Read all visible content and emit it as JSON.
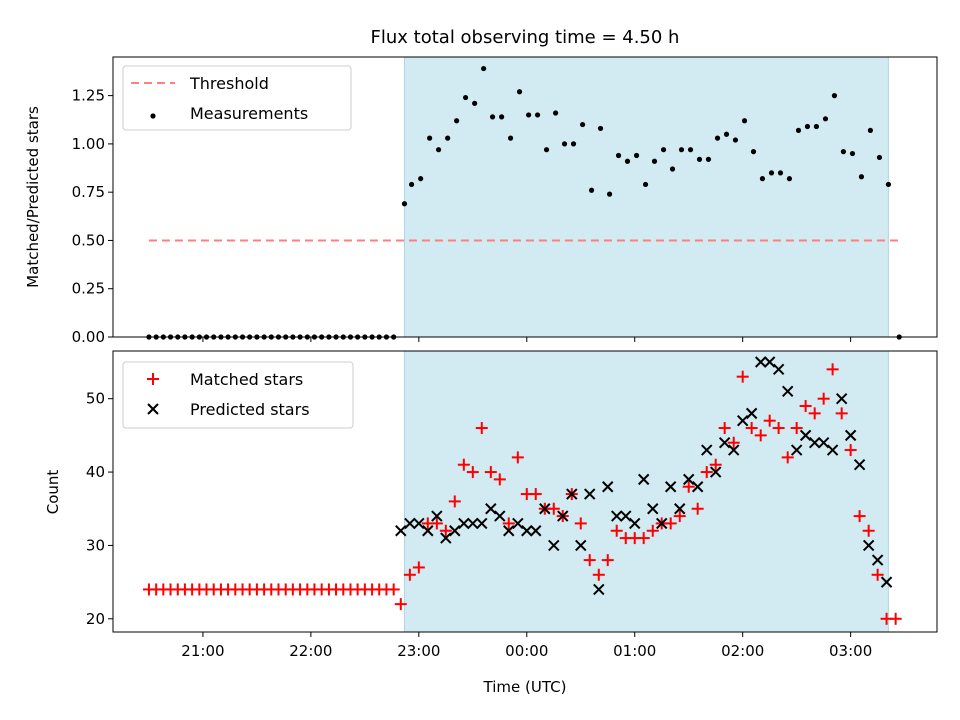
{
  "chart_data": [
    {
      "type": "scatter",
      "title": "Flux total observing time = 4.50 h",
      "xlabel": "",
      "ylabel": "Matched/Predicted stars",
      "ylim": [
        0,
        1.45
      ],
      "yticks": [
        "0.00",
        "0.25",
        "0.50",
        "0.75",
        "1.00",
        "1.25"
      ],
      "xlim_hours": [
        20.167,
        27.8
      ],
      "shaded_region_hours": [
        22.867,
        27.35
      ],
      "shade_color": "#add8e6",
      "threshold": {
        "name": "Threshold",
        "y": 0.5,
        "x_hours": [
          20.5,
          27.45
        ],
        "color": "#ff7f7f"
      },
      "legend": {
        "position": "upper left",
        "entries": [
          "Threshold",
          "Measurements"
        ]
      },
      "series": [
        {
          "name": "Measurements",
          "color": "#000000",
          "marker": "dot",
          "points": [
            [
              20.5,
              0
            ],
            [
              20.567,
              0
            ],
            [
              20.633,
              0
            ],
            [
              20.7,
              0
            ],
            [
              20.767,
              0
            ],
            [
              20.833,
              0
            ],
            [
              20.9,
              0
            ],
            [
              20.967,
              0
            ],
            [
              21.033,
              0
            ],
            [
              21.1,
              0
            ],
            [
              21.167,
              0
            ],
            [
              21.233,
              0
            ],
            [
              21.3,
              0
            ],
            [
              21.367,
              0
            ],
            [
              21.433,
              0
            ],
            [
              21.5,
              0
            ],
            [
              21.567,
              0
            ],
            [
              21.633,
              0
            ],
            [
              21.7,
              0
            ],
            [
              21.767,
              0
            ],
            [
              21.833,
              0
            ],
            [
              21.9,
              0
            ],
            [
              21.967,
              0
            ],
            [
              22.033,
              0
            ],
            [
              22.1,
              0
            ],
            [
              22.167,
              0
            ],
            [
              22.233,
              0
            ],
            [
              22.3,
              0
            ],
            [
              22.367,
              0
            ],
            [
              22.433,
              0
            ],
            [
              22.5,
              0
            ],
            [
              22.567,
              0
            ],
            [
              22.633,
              0
            ],
            [
              22.7,
              0
            ],
            [
              22.767,
              0
            ],
            [
              22.867,
              0.69
            ],
            [
              22.933,
              0.79
            ],
            [
              23.017,
              0.82
            ],
            [
              23.1,
              1.03
            ],
            [
              23.183,
              0.97
            ],
            [
              23.267,
              1.03
            ],
            [
              23.35,
              1.12
            ],
            [
              23.433,
              1.24
            ],
            [
              23.517,
              1.21
            ],
            [
              23.6,
              1.39
            ],
            [
              23.683,
              1.14
            ],
            [
              23.767,
              1.14
            ],
            [
              23.85,
              1.03
            ],
            [
              23.933,
              1.27
            ],
            [
              24.017,
              1.15
            ],
            [
              24.1,
              1.15
            ],
            [
              24.183,
              0.97
            ],
            [
              24.267,
              1.16
            ],
            [
              24.35,
              1.0
            ],
            [
              24.433,
              1.0
            ],
            [
              24.517,
              1.1
            ],
            [
              24.6,
              0.76
            ],
            [
              24.683,
              1.08
            ],
            [
              24.767,
              0.74
            ],
            [
              24.85,
              0.94
            ],
            [
              24.933,
              0.91
            ],
            [
              25.017,
              0.94
            ],
            [
              25.1,
              0.79
            ],
            [
              25.183,
              0.91
            ],
            [
              25.267,
              0.97
            ],
            [
              25.35,
              0.87
            ],
            [
              25.433,
              0.97
            ],
            [
              25.517,
              0.97
            ],
            [
              25.6,
              0.92
            ],
            [
              25.683,
              0.92
            ],
            [
              25.767,
              1.03
            ],
            [
              25.85,
              1.05
            ],
            [
              25.933,
              1.02
            ],
            [
              26.017,
              1.12
            ],
            [
              26.1,
              0.96
            ],
            [
              26.183,
              0.82
            ],
            [
              26.267,
              0.85
            ],
            [
              26.35,
              0.85
            ],
            [
              26.433,
              0.82
            ],
            [
              26.517,
              1.07
            ],
            [
              26.6,
              1.09
            ],
            [
              26.683,
              1.09
            ],
            [
              26.767,
              1.13
            ],
            [
              26.85,
              1.25
            ],
            [
              26.933,
              0.96
            ],
            [
              27.017,
              0.95
            ],
            [
              27.1,
              0.83
            ],
            [
              27.183,
              1.07
            ],
            [
              27.267,
              0.93
            ],
            [
              27.35,
              0.79
            ],
            [
              27.45,
              0
            ]
          ]
        }
      ]
    },
    {
      "type": "scatter",
      "title": "",
      "xlabel": "Time (UTC)",
      "ylabel": "Count",
      "ylim": [
        18.2,
        56.5
      ],
      "yticks": [
        "20",
        "30",
        "40",
        "50"
      ],
      "xticks": [
        "21:00",
        "22:00",
        "23:00",
        "00:00",
        "01:00",
        "02:00",
        "03:00"
      ],
      "xtick_hours": [
        21,
        22,
        23,
        24,
        25,
        26,
        27
      ],
      "xlim_hours": [
        20.167,
        27.8
      ],
      "shaded_region_hours": [
        22.867,
        27.35
      ],
      "shade_color": "#add8e6",
      "legend": {
        "position": "upper left",
        "entries": [
          "Matched stars",
          "Predicted stars"
        ]
      },
      "series": [
        {
          "name": "Matched stars",
          "color": "#ff0000",
          "marker": "plus",
          "points": [
            [
              20.5,
              24
            ],
            [
              20.567,
              24
            ],
            [
              20.633,
              24
            ],
            [
              20.7,
              24
            ],
            [
              20.767,
              24
            ],
            [
              20.833,
              24
            ],
            [
              20.9,
              24
            ],
            [
              20.967,
              24
            ],
            [
              21.033,
              24
            ],
            [
              21.1,
              24
            ],
            [
              21.167,
              24
            ],
            [
              21.233,
              24
            ],
            [
              21.3,
              24
            ],
            [
              21.367,
              24
            ],
            [
              21.433,
              24
            ],
            [
              21.5,
              24
            ],
            [
              21.567,
              24
            ],
            [
              21.633,
              24
            ],
            [
              21.7,
              24
            ],
            [
              21.767,
              24
            ],
            [
              21.833,
              24
            ],
            [
              21.9,
              24
            ],
            [
              21.967,
              24
            ],
            [
              22.033,
              24
            ],
            [
              22.1,
              24
            ],
            [
              22.167,
              24
            ],
            [
              22.233,
              24
            ],
            [
              22.3,
              24
            ],
            [
              22.367,
              24
            ],
            [
              22.433,
              24
            ],
            [
              22.5,
              24
            ],
            [
              22.567,
              24
            ],
            [
              22.633,
              24
            ],
            [
              22.7,
              24
            ],
            [
              22.767,
              24
            ],
            [
              22.833,
              22
            ],
            [
              22.917,
              26
            ],
            [
              23.0,
              27
            ],
            [
              23.083,
              33
            ],
            [
              23.167,
              33
            ],
            [
              23.25,
              32
            ],
            [
              23.333,
              36
            ],
            [
              23.417,
              41
            ],
            [
              23.5,
              40
            ],
            [
              23.583,
              46
            ],
            [
              23.667,
              40
            ],
            [
              23.75,
              39
            ],
            [
              23.833,
              33
            ],
            [
              23.917,
              42
            ],
            [
              24.0,
              37
            ],
            [
              24.083,
              37
            ],
            [
              24.167,
              35
            ],
            [
              24.25,
              35
            ],
            [
              24.333,
              34
            ],
            [
              24.417,
              37
            ],
            [
              24.5,
              33
            ],
            [
              24.583,
              28
            ],
            [
              24.667,
              26
            ],
            [
              24.75,
              28
            ],
            [
              24.833,
              32
            ],
            [
              24.917,
              31
            ],
            [
              25.0,
              31
            ],
            [
              25.083,
              31
            ],
            [
              25.167,
              32
            ],
            [
              25.25,
              33
            ],
            [
              25.333,
              33
            ],
            [
              25.417,
              34
            ],
            [
              25.5,
              38
            ],
            [
              25.583,
              35
            ],
            [
              25.667,
              40
            ],
            [
              25.75,
              41
            ],
            [
              25.833,
              46
            ],
            [
              25.917,
              44
            ],
            [
              26.0,
              53
            ],
            [
              26.083,
              46
            ],
            [
              26.167,
              45
            ],
            [
              26.25,
              47
            ],
            [
              26.333,
              46
            ],
            [
              26.417,
              42
            ],
            [
              26.5,
              46
            ],
            [
              26.583,
              49
            ],
            [
              26.667,
              48
            ],
            [
              26.75,
              50
            ],
            [
              26.833,
              54
            ],
            [
              26.917,
              48
            ],
            [
              27.0,
              43
            ],
            [
              27.083,
              34
            ],
            [
              27.167,
              32
            ],
            [
              27.25,
              26
            ],
            [
              27.333,
              20
            ],
            [
              27.417,
              20
            ]
          ]
        },
        {
          "name": "Predicted stars",
          "color": "#000000",
          "marker": "cross",
          "points": [
            [
              22.833,
              32
            ],
            [
              22.917,
              33
            ],
            [
              23.0,
              33
            ],
            [
              23.083,
              32
            ],
            [
              23.167,
              34
            ],
            [
              23.25,
              31
            ],
            [
              23.333,
              32
            ],
            [
              23.417,
              33
            ],
            [
              23.5,
              33
            ],
            [
              23.583,
              33
            ],
            [
              23.667,
              35
            ],
            [
              23.75,
              34
            ],
            [
              23.833,
              32
            ],
            [
              23.917,
              33
            ],
            [
              24.0,
              32
            ],
            [
              24.083,
              32
            ],
            [
              24.167,
              35
            ],
            [
              24.25,
              30
            ],
            [
              24.333,
              34
            ],
            [
              24.417,
              37
            ],
            [
              24.5,
              30
            ],
            [
              24.583,
              37
            ],
            [
              24.667,
              24
            ],
            [
              24.75,
              38
            ],
            [
              24.833,
              34
            ],
            [
              24.917,
              34
            ],
            [
              25.0,
              33
            ],
            [
              25.083,
              39
            ],
            [
              25.167,
              35
            ],
            [
              25.25,
              33
            ],
            [
              25.333,
              38
            ],
            [
              25.417,
              35
            ],
            [
              25.5,
              39
            ],
            [
              25.583,
              38
            ],
            [
              25.667,
              43
            ],
            [
              25.75,
              40
            ],
            [
              25.833,
              44
            ],
            [
              25.917,
              43
            ],
            [
              26.0,
              47
            ],
            [
              26.083,
              48
            ],
            [
              26.167,
              55
            ],
            [
              26.25,
              55
            ],
            [
              26.333,
              54
            ],
            [
              26.417,
              51
            ],
            [
              26.5,
              43
            ],
            [
              26.583,
              45
            ],
            [
              26.667,
              44
            ],
            [
              26.75,
              44
            ],
            [
              26.833,
              43
            ],
            [
              26.917,
              50
            ],
            [
              27.0,
              45
            ],
            [
              27.083,
              41
            ],
            [
              27.167,
              30
            ],
            [
              27.25,
              28
            ],
            [
              27.333,
              25
            ]
          ]
        }
      ]
    }
  ]
}
